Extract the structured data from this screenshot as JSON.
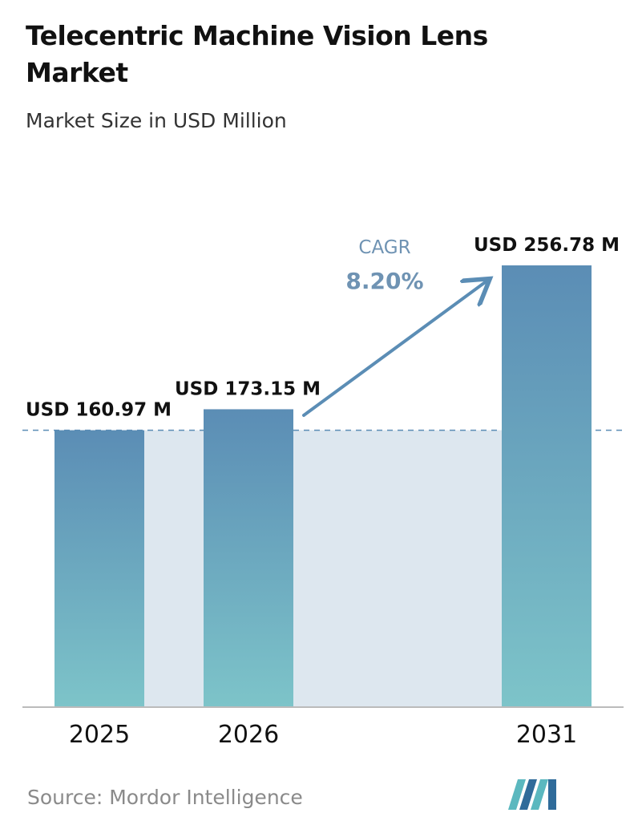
{
  "title": "Telecentric Machine Vision Lens Market",
  "subtitle": "Market Size in USD Million",
  "source": "Source: Mordor Intelligence",
  "cagr": {
    "label": "CAGR",
    "value": "8.20%"
  },
  "colors": {
    "bar_top": "#5b8db5",
    "bar_bottom": "#7dc4c9",
    "band": "#dde7ef",
    "arrow": "#5b8db5",
    "dashed_line": "#5b8db5",
    "axis": "#bbbbbb",
    "logo_teal": "#5bb8bf",
    "logo_blue": "#2f6b9a"
  },
  "logo": {
    "icon": "mordor-intelligence-logo-icon"
  },
  "chart_data": {
    "type": "bar",
    "title": "Telecentric Machine Vision Lens Market",
    "subtitle": "Market Size in USD Million",
    "categories": [
      "2025",
      "2026",
      "2031"
    ],
    "values": [
      160.97,
      173.15,
      256.78
    ],
    "data_labels": [
      "USD 160.97 M",
      "USD 173.15 M",
      "USD 256.78 M"
    ],
    "ylim": [
      0,
      256.78
    ],
    "grid": false,
    "legend": "none",
    "reference_line": {
      "value": 160.97,
      "style": "dashed"
    }
  }
}
